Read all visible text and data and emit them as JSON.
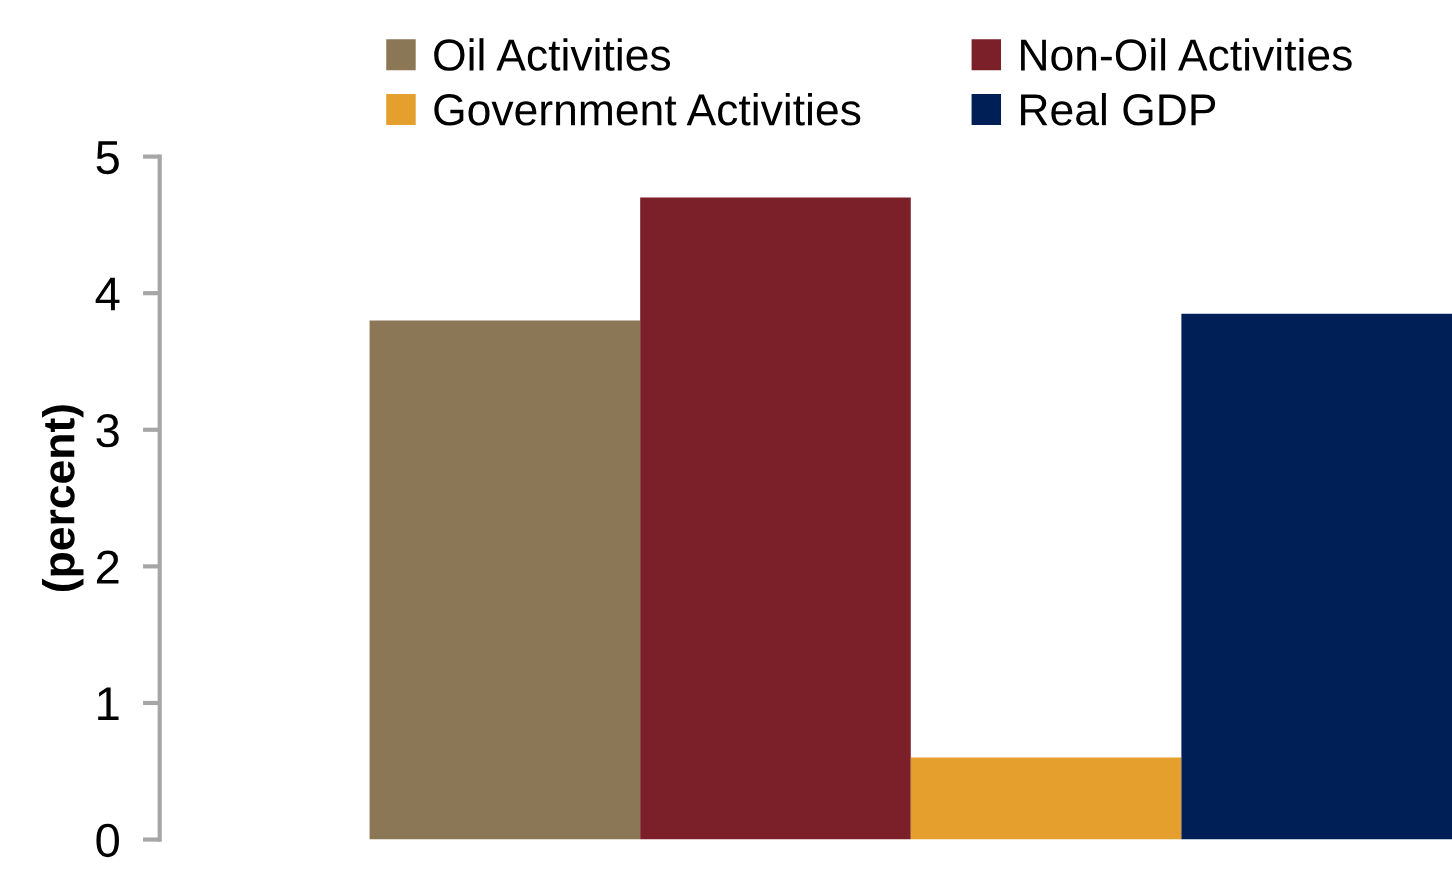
{
  "chart_data": {
    "type": "bar",
    "ylabel": "(percent)",
    "categories": [
      null
    ],
    "series": [
      {
        "name": "Oil Activities",
        "color": "#8b7755",
        "values": [
          3.8
        ]
      },
      {
        "name": "Non-Oil Activities",
        "color": "#7b2029",
        "values": [
          4.7
        ]
      },
      {
        "name": "Government Activities",
        "color": "#e49f2c",
        "values": [
          0.6
        ]
      },
      {
        "name": "Real GDP",
        "color": "#001f57",
        "values": [
          3.85
        ]
      }
    ],
    "ylim": [
      0,
      5
    ],
    "yticks": [
      0,
      1,
      2,
      3,
      4,
      5
    ],
    "grid": false,
    "legend": "top"
  }
}
